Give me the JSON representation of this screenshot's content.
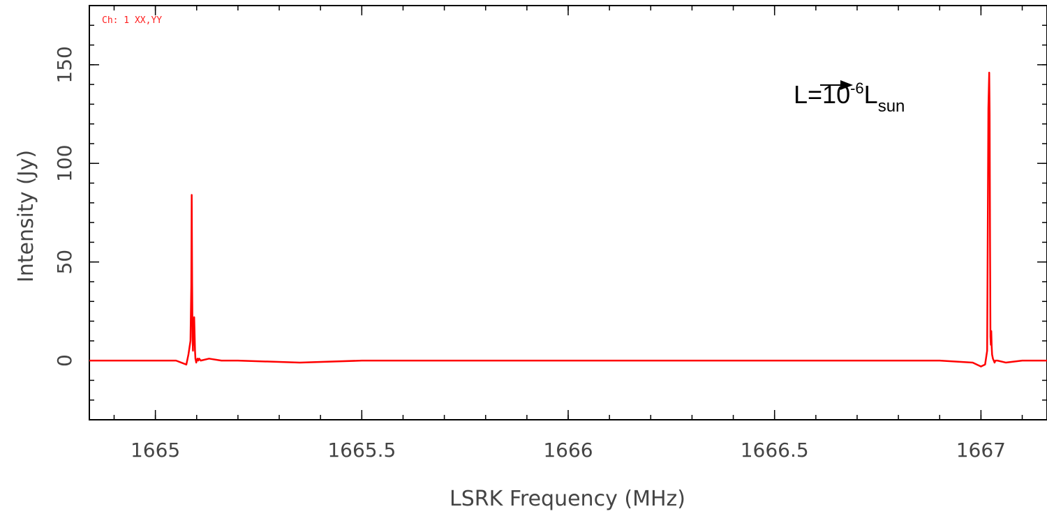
{
  "chart_data": {
    "type": "line",
    "channel_label": "Ch: 1 XX,YY",
    "xlabel": "LSRK Frequency (MHz)",
    "ylabel": "Intensity (Jy)",
    "xlim": [
      1664.84,
      1667.16
    ],
    "ylim": [
      -30,
      180
    ],
    "x_major_ticks": [
      1665,
      1665.5,
      1666,
      1666.5,
      1667
    ],
    "x_tick_labels": [
      "1665",
      "1665.5",
      "1666",
      "1666.5",
      "1667"
    ],
    "y_major_ticks": [
      0,
      50,
      100,
      150
    ],
    "y_tick_labels": [
      "0",
      "50",
      "100",
      "150"
    ],
    "grid": false,
    "series_color": "#ff0000",
    "series": [
      {
        "x": [
          1664.84,
          1665.0,
          1665.05,
          1665.075,
          1665.08,
          1665.085,
          1665.087,
          1665.088,
          1665.089,
          1665.09,
          1665.091,
          1665.092,
          1665.093,
          1665.094,
          1665.096,
          1665.097,
          1665.098,
          1665.099,
          1665.1,
          1665.102,
          1665.104,
          1665.106,
          1665.11,
          1665.13,
          1665.16,
          1665.2,
          1665.35,
          1665.5,
          1665.8,
          1666.0,
          1666.5,
          1666.9,
          1666.98,
          1667.0,
          1667.01,
          1667.015,
          1667.018,
          1667.02,
          1667.021,
          1667.022,
          1667.023,
          1667.024,
          1667.025,
          1667.026,
          1667.027,
          1667.029,
          1667.031,
          1667.033,
          1667.035,
          1667.04,
          1667.06,
          1667.1,
          1667.16
        ],
        "y": [
          0,
          0,
          0,
          -2,
          3,
          10,
          38,
          84,
          40,
          12,
          5,
          18,
          8,
          22,
          5,
          1,
          0,
          -1,
          0,
          1,
          0,
          1,
          0,
          1,
          0,
          0,
          -1,
          0,
          0,
          0,
          0,
          0,
          -1,
          -3,
          -2,
          5,
          128,
          146,
          125,
          60,
          12,
          8,
          15,
          7,
          3,
          1,
          0,
          -1,
          0,
          0,
          -1,
          0,
          0
        ]
      }
    ],
    "annotation": {
      "base": "L=10",
      "exponent": "-6",
      "symbol": "L",
      "subscript": "sun",
      "target": {
        "x": 1667.02,
        "y": 146
      }
    }
  }
}
